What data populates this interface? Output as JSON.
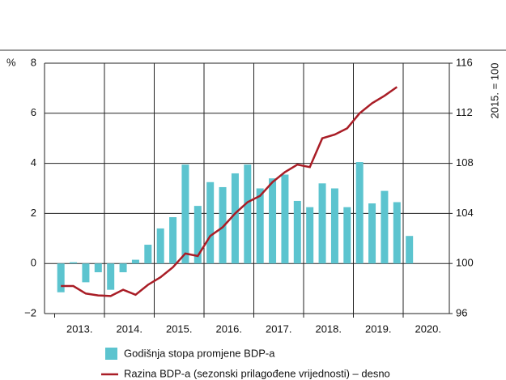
{
  "chart_data": {
    "type": "bar_line",
    "categories": [
      "2013.",
      null,
      null,
      null,
      "2014.",
      null,
      null,
      null,
      "2015.",
      null,
      null,
      null,
      "2016.",
      null,
      null,
      null,
      "2017.",
      null,
      null,
      null,
      "2018.",
      null,
      null,
      null,
      "2019.",
      null,
      null,
      null,
      "2020."
    ],
    "series": [
      {
        "name": "Godišnja stopa promjene BDP-a",
        "color": "#5cc4cf",
        "type": "bar",
        "values": [
          -1.15,
          0.05,
          -0.75,
          -0.35,
          -1.05,
          -0.35,
          0.15,
          0.75,
          1.4,
          1.85,
          3.95,
          2.3,
          3.25,
          3.05,
          3.6,
          3.95,
          3.0,
          3.4,
          3.55,
          2.5,
          2.25,
          3.2,
          3.0,
          2.25,
          4.05,
          2.4,
          2.9,
          2.45,
          1.1
        ]
      },
      {
        "name": "Razina BDP-a (sezonski prilagođene vrijednosti) – desno",
        "color": "#a91d26",
        "type": "line",
        "axis": "y2",
        "values": [
          98.2,
          98.2,
          97.6,
          97.45,
          97.4,
          97.9,
          97.5,
          98.3,
          98.9,
          99.7,
          100.8,
          100.6,
          102.2,
          102.9,
          104.0,
          104.9,
          105.4,
          106.5,
          107.3,
          107.9,
          107.7,
          110.0,
          110.3,
          110.8,
          112.0,
          112.8,
          113.4,
          114.1,
          null
        ]
      }
    ],
    "y_label": "%",
    "y2_label": "2015. = 100",
    "ylim": [
      -2,
      8
    ],
    "yticks": [
      {
        "value": -2,
        "label": "−2"
      },
      0,
      2,
      4,
      6,
      8
    ],
    "y2lim": [
      96,
      116
    ],
    "y2ticks": [
      96,
      100,
      104,
      108,
      112,
      116
    ],
    "grid": true
  }
}
